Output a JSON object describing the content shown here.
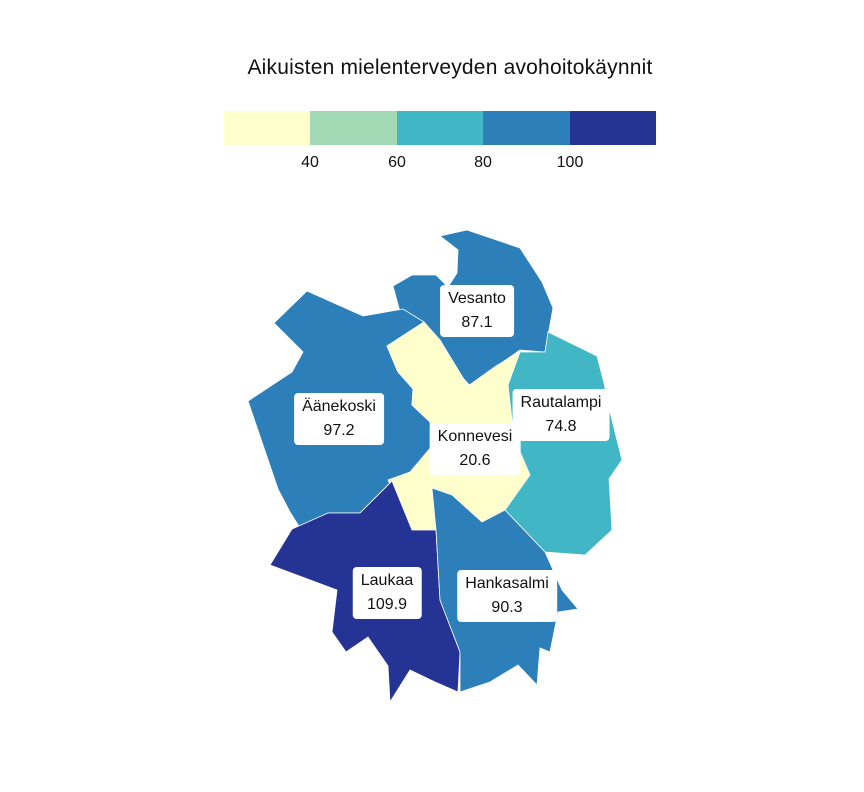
{
  "title": "Aikuisten mielenterveyden avohoitokäynnit",
  "legend": {
    "colors": [
      "#ffffcc",
      "#a1dab4",
      "#41b6c4",
      "#2c7fb8",
      "#253494"
    ],
    "ticks": [
      "40",
      "60",
      "80",
      "100"
    ]
  },
  "regions": [
    {
      "name": "Vesanto",
      "value": "87.1",
      "color": "#2c7fb8"
    },
    {
      "name": "Äänekoski",
      "value": "97.2",
      "color": "#2c7fb8"
    },
    {
      "name": "Rautalampi",
      "value": "74.8",
      "color": "#41b6c4"
    },
    {
      "name": "Konnevesi",
      "value": "20.6",
      "color": "#ffffcc"
    },
    {
      "name": "Laukaa",
      "value": "109.9",
      "color": "#253494"
    },
    {
      "name": "Hankasalmi",
      "value": "90.3",
      "color": "#2c7fb8"
    }
  ]
}
